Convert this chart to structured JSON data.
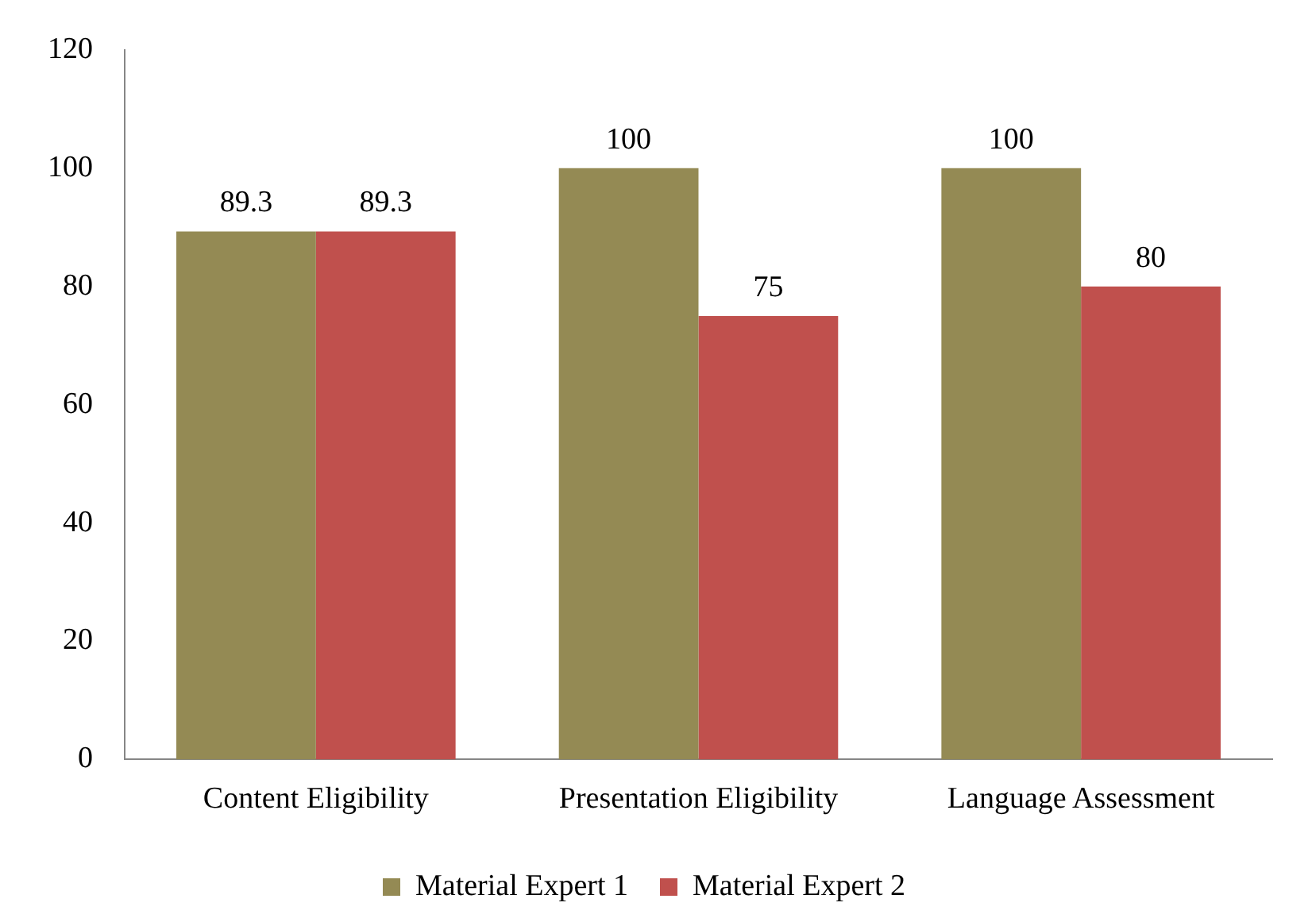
{
  "chart_data": {
    "type": "bar",
    "categories": [
      "Content Eligibility",
      "Presentation Eligibility",
      "Language Assessment"
    ],
    "series": [
      {
        "name": "Material Expert 1",
        "color": "#948a54",
        "values": [
          89.3,
          100,
          100
        ]
      },
      {
        "name": "Material Expert 2",
        "color": "#c0504d",
        "values": [
          89.3,
          75,
          80
        ]
      }
    ],
    "ylim": [
      0,
      120
    ],
    "yticks": [
      0,
      20,
      40,
      60,
      80,
      100,
      120
    ],
    "grid": false,
    "legend": "bottom",
    "data_labels": true
  }
}
